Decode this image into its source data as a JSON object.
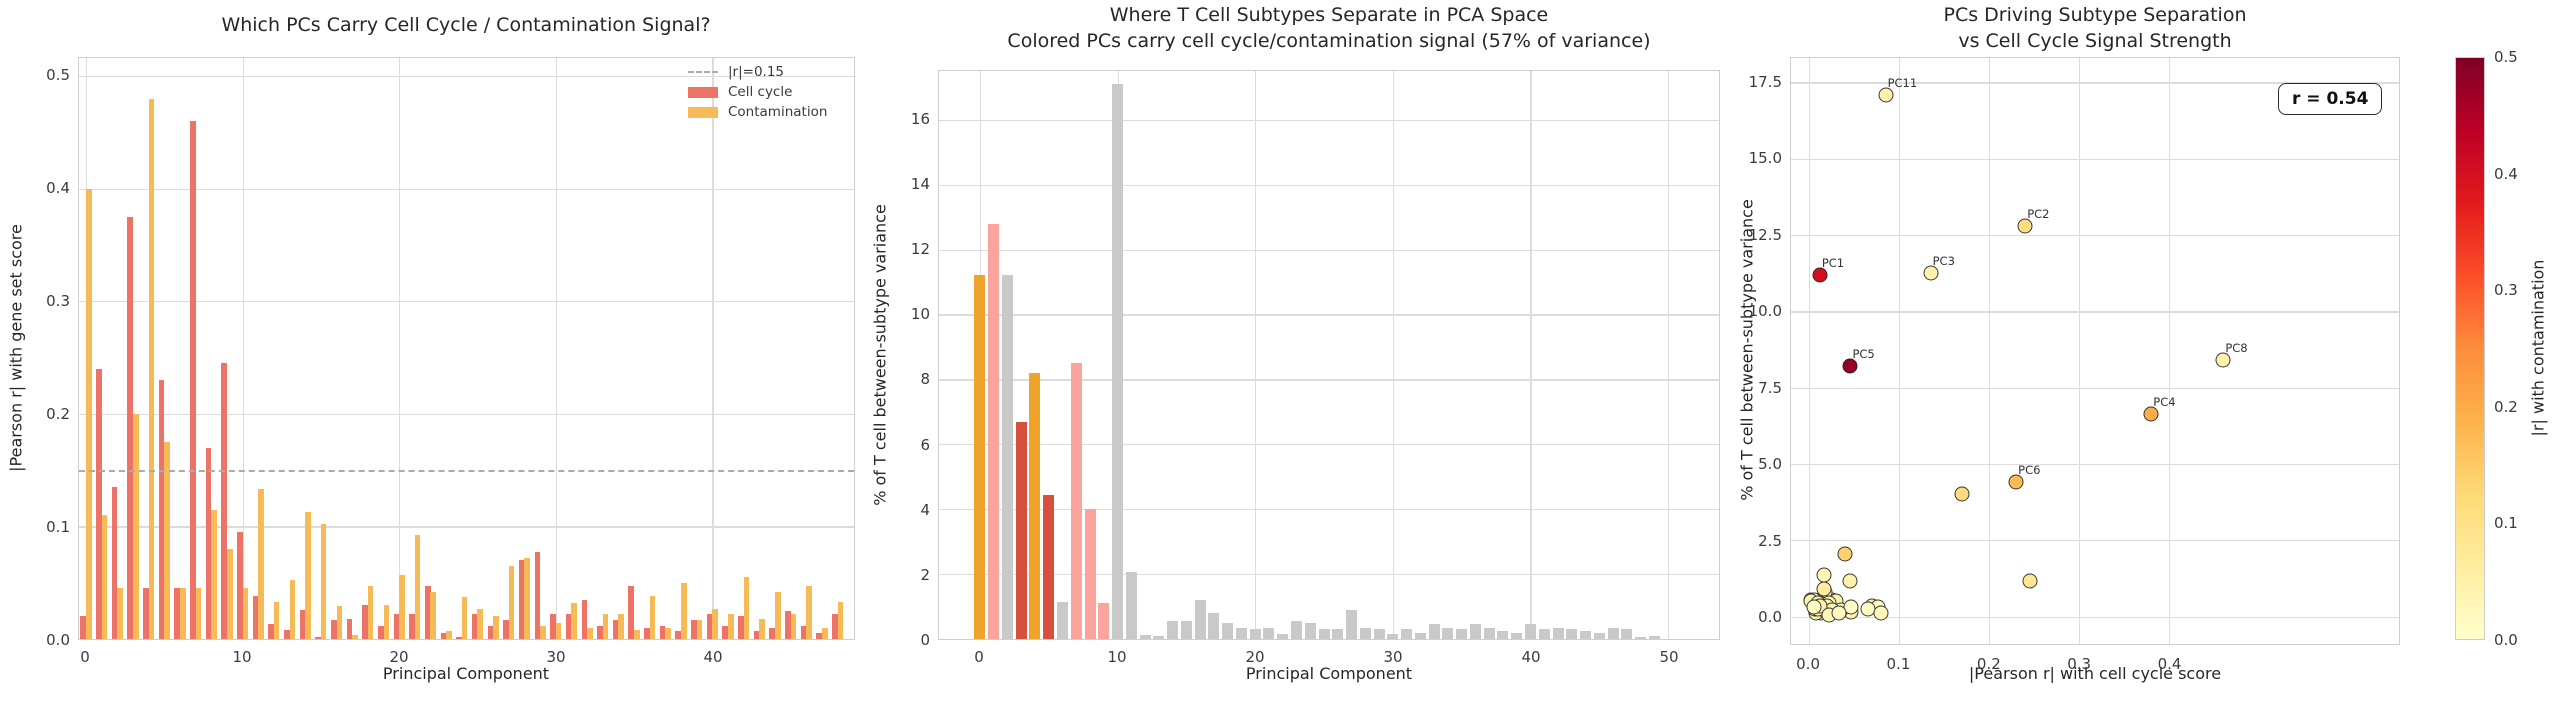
{
  "figure": {
    "background": "#ffffff",
    "grid_color": "#dcdcdc",
    "spine_color": "#cfcfcf",
    "cell_cycle_color": "#ec7365",
    "contamination_color": "#f6bb57"
  },
  "chart_data": [
    {
      "type": "bar",
      "title": "Which PCs Carry Cell Cycle / Contamination Signal?",
      "xlabel": "Principal Component",
      "ylabel": "|Pearson r| with gene set score",
      "xticks": [
        0,
        10,
        20,
        30,
        40
      ],
      "yticks": [
        "0.0",
        "0.1",
        "0.2",
        "0.3",
        "0.4",
        "0.5"
      ],
      "ylim": [
        0,
        0.516
      ],
      "grid": true,
      "threshold": {
        "value": 0.15,
        "color": "#ababab"
      },
      "legend": [
        {
          "label": "|r|=0.15",
          "type": "dashed-line",
          "color": "#ababab"
        },
        {
          "label": "Cell cycle",
          "type": "patch",
          "color": "#ec7365"
        },
        {
          "label": "Contamination",
          "type": "patch",
          "color": "#f6bb57"
        }
      ],
      "categories": [
        0,
        1,
        2,
        3,
        4,
        5,
        6,
        7,
        8,
        9,
        10,
        11,
        12,
        13,
        14,
        15,
        16,
        17,
        18,
        19,
        20,
        21,
        22,
        23,
        24,
        25,
        26,
        27,
        28,
        29,
        30,
        31,
        32,
        33,
        34,
        35,
        36,
        37,
        38,
        39,
        40,
        41,
        42,
        43,
        44,
        45,
        46,
        47,
        48
      ],
      "series": [
        {
          "name": "Cell cycle",
          "color": "#ec7365",
          "values": [
            0.02,
            0.24,
            0.135,
            0.375,
            0.045,
            0.23,
            0.045,
            0.46,
            0.17,
            0.245,
            0.095,
            0.038,
            0.013,
            0.008,
            0.026,
            0.002,
            0.017,
            0.018,
            0.03,
            0.012,
            0.022,
            0.022,
            0.047,
            0.005,
            0.002,
            0.022,
            0.012,
            0.017,
            0.07,
            0.077,
            0.022,
            0.022,
            0.035,
            0.012,
            0.017,
            0.047,
            0.01,
            0.012,
            0.007,
            0.017,
            0.022,
            0.012,
            0.02,
            0.007,
            0.01,
            0.025,
            0.012,
            0.005,
            0.022
          ]
        },
        {
          "name": "Contamination",
          "color": "#f6bb57",
          "values": [
            0.4,
            0.11,
            0.045,
            0.2,
            0.48,
            0.175,
            0.045,
            0.045,
            0.115,
            0.08,
            0.045,
            0.133,
            0.033,
            0.052,
            0.113,
            0.102,
            0.029,
            0.004,
            0.047,
            0.03,
            0.057,
            0.092,
            0.042,
            0.007,
            0.037,
            0.027,
            0.02,
            0.065,
            0.072,
            0.012,
            0.014,
            0.032,
            0.01,
            0.022,
            0.022,
            0.008,
            0.038,
            0.01,
            0.05,
            0.017,
            0.027,
            0.022,
            0.055,
            0.018,
            0.042,
            0.022,
            0.047,
            0.01,
            0.033
          ]
        }
      ]
    },
    {
      "type": "bar",
      "title": "Where T Cell Subtypes Separate in PCA Space",
      "subtitle": "Colored PCs carry cell cycle/contamination signal (57% of variance)",
      "xlabel": "Principal Component",
      "ylabel": "% of T cell between-subtype variance",
      "xticks": [
        0,
        10,
        20,
        30,
        40,
        50
      ],
      "yticks": [
        "0",
        "2",
        "4",
        "6",
        "8",
        "10",
        "12",
        "14",
        "16"
      ],
      "ylim": [
        0,
        17.5
      ],
      "grid": true,
      "color_key": {
        "orange": "#efa32b",
        "pink": "#fba49e",
        "darkred": "#d7503e",
        "gray": "#c9c9c9"
      },
      "categories": [
        0,
        1,
        2,
        3,
        4,
        5,
        6,
        7,
        8,
        9,
        10,
        11,
        12,
        13,
        14,
        15,
        16,
        17,
        18,
        19,
        20,
        21,
        22,
        23,
        24,
        25,
        26,
        27,
        28,
        29,
        30,
        31,
        32,
        33,
        34,
        35,
        36,
        37,
        38,
        39,
        40,
        41,
        42,
        43,
        44,
        45,
        46,
        47,
        48,
        49
      ],
      "values": [
        11.2,
        12.8,
        11.2,
        6.7,
        8.2,
        4.45,
        1.15,
        8.5,
        4.0,
        1.1,
        17.1,
        2.05,
        0.12,
        0.1,
        0.55,
        0.55,
        1.2,
        0.8,
        0.5,
        0.35,
        0.3,
        0.35,
        0.15,
        0.55,
        0.5,
        0.3,
        0.3,
        0.9,
        0.35,
        0.3,
        0.15,
        0.3,
        0.2,
        0.45,
        0.35,
        0.3,
        0.45,
        0.35,
        0.25,
        0.2,
        0.45,
        0.3,
        0.35,
        0.3,
        0.25,
        0.2,
        0.35,
        0.3,
        0.05,
        0.1
      ],
      "bar_color_names": [
        "orange",
        "pink",
        "gray",
        "darkred",
        "orange",
        "darkred",
        "gray",
        "pink",
        "pink",
        "pink",
        "gray",
        "gray",
        "gray",
        "gray",
        "gray",
        "gray",
        "gray",
        "gray",
        "gray",
        "gray",
        "gray",
        "gray",
        "gray",
        "gray",
        "gray",
        "gray",
        "gray",
        "gray",
        "gray",
        "gray",
        "gray",
        "gray",
        "gray",
        "gray",
        "gray",
        "gray",
        "gray",
        "gray",
        "gray",
        "gray",
        "gray",
        "gray",
        "gray",
        "gray",
        "gray",
        "gray",
        "gray",
        "gray",
        "gray",
        "gray"
      ]
    },
    {
      "type": "scatter",
      "title": "PCs Driving Subtype Separation",
      "subtitle": "vs Cell Cycle Signal Strength",
      "xlabel": "|Pearson r| with cell cycle score",
      "ylabel": "% of T cell between-subtype variance",
      "xticks": [
        "0.0",
        "0.1",
        "0.2",
        "0.3",
        "0.4"
      ],
      "yticks": [
        "0.0",
        "2.5",
        "5.0",
        "7.5",
        "10.0",
        "12.5",
        "15.0",
        "17.5"
      ],
      "xlim": [
        -0.02,
        0.655
      ],
      "ylim": [
        -0.9,
        18.3
      ],
      "grid": true,
      "annotation": "r = 0.54",
      "colorbar": {
        "label": "|r| with contamination",
        "ticks": [
          "0.0",
          "0.1",
          "0.2",
          "0.3",
          "0.4",
          "0.5"
        ],
        "range": [
          0,
          0.5
        ],
        "colormap": "YlOrRd"
      },
      "points": [
        {
          "label": "PC1",
          "x": 0.012,
          "y": 11.2,
          "c": 0.4
        },
        {
          "label": "PC2",
          "x": 0.24,
          "y": 12.8,
          "c": 0.11
        },
        {
          "label": "PC3",
          "x": 0.135,
          "y": 11.25,
          "c": 0.045
        },
        {
          "label": "PC4",
          "x": 0.38,
          "y": 6.65,
          "c": 0.2
        },
        {
          "label": "PC5",
          "x": 0.046,
          "y": 8.2,
          "c": 0.48
        },
        {
          "label": "PC6",
          "x": 0.23,
          "y": 4.4,
          "c": 0.175
        },
        {
          "label": "PC8",
          "x": 0.46,
          "y": 8.4,
          "c": 0.045
        },
        {
          "label": "PC11",
          "x": 0.085,
          "y": 17.1,
          "c": 0.045
        },
        {
          "x": 0.045,
          "y": 1.15,
          "c": 0.045
        },
        {
          "x": 0.17,
          "y": 4.0,
          "c": 0.115
        },
        {
          "x": 0.245,
          "y": 1.15,
          "c": 0.08
        },
        {
          "x": 0.04,
          "y": 2.05,
          "c": 0.135
        },
        {
          "x": 0.013,
          "y": 0.12,
          "c": 0.033
        },
        {
          "x": 0.008,
          "y": 0.1,
          "c": 0.052
        },
        {
          "x": 0.026,
          "y": 0.55,
          "c": 0.113
        },
        {
          "x": 0.002,
          "y": 0.55,
          "c": 0.102
        },
        {
          "x": 0.017,
          "y": 1.35,
          "c": 0.029
        },
        {
          "x": 0.018,
          "y": 0.8,
          "c": 0.004
        },
        {
          "x": 0.03,
          "y": 0.5,
          "c": 0.047
        },
        {
          "x": 0.012,
          "y": 0.35,
          "c": 0.03
        },
        {
          "x": 0.022,
          "y": 0.3,
          "c": 0.057
        },
        {
          "x": 0.022,
          "y": 0.35,
          "c": 0.092
        },
        {
          "x": 0.047,
          "y": 0.15,
          "c": 0.042
        },
        {
          "x": 0.005,
          "y": 0.55,
          "c": 0.007
        },
        {
          "x": 0.002,
          "y": 0.5,
          "c": 0.037
        },
        {
          "x": 0.022,
          "y": 0.3,
          "c": 0.027
        },
        {
          "x": 0.012,
          "y": 0.3,
          "c": 0.02
        },
        {
          "x": 0.017,
          "y": 0.9,
          "c": 0.065
        },
        {
          "x": 0.07,
          "y": 0.35,
          "c": 0.072
        },
        {
          "x": 0.077,
          "y": 0.3,
          "c": 0.012
        },
        {
          "x": 0.022,
          "y": 0.15,
          "c": 0.014
        },
        {
          "x": 0.022,
          "y": 0.3,
          "c": 0.032
        },
        {
          "x": 0.035,
          "y": 0.2,
          "c": 0.01
        },
        {
          "x": 0.012,
          "y": 0.45,
          "c": 0.022
        },
        {
          "x": 0.017,
          "y": 0.35,
          "c": 0.022
        },
        {
          "x": 0.047,
          "y": 0.3,
          "c": 0.008
        },
        {
          "x": 0.01,
          "y": 0.45,
          "c": 0.038
        },
        {
          "x": 0.012,
          "y": 0.35,
          "c": 0.01
        },
        {
          "x": 0.007,
          "y": 0.25,
          "c": 0.05
        },
        {
          "x": 0.017,
          "y": 0.2,
          "c": 0.017
        },
        {
          "x": 0.022,
          "y": 0.45,
          "c": 0.027
        },
        {
          "x": 0.012,
          "y": 0.3,
          "c": 0.022
        },
        {
          "x": 0.02,
          "y": 0.35,
          "c": 0.055
        },
        {
          "x": 0.007,
          "y": 0.3,
          "c": 0.018
        },
        {
          "x": 0.01,
          "y": 0.25,
          "c": 0.042
        },
        {
          "x": 0.025,
          "y": 0.2,
          "c": 0.022
        },
        {
          "x": 0.012,
          "y": 0.35,
          "c": 0.047
        },
        {
          "x": 0.005,
          "y": 0.3,
          "c": 0.01
        },
        {
          "x": 0.022,
          "y": 0.05,
          "c": 0.033
        },
        {
          "x": 0.033,
          "y": 0.1,
          "c": 0.02
        },
        {
          "x": 0.065,
          "y": 0.25,
          "c": 0.015
        },
        {
          "x": 0.08,
          "y": 0.1,
          "c": 0.025
        }
      ]
    }
  ]
}
